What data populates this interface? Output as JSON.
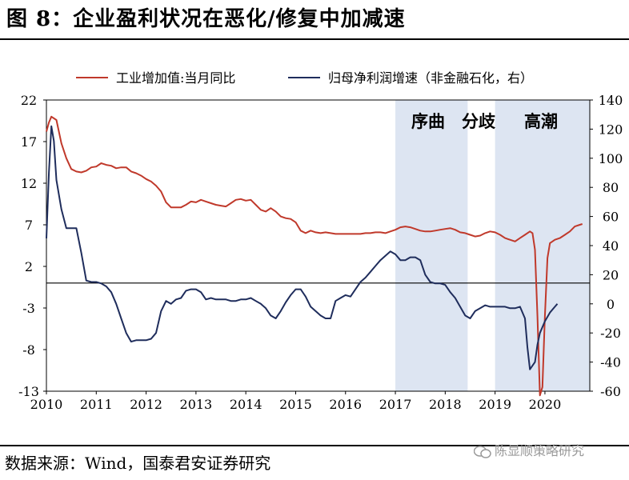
{
  "title": "图 8：企业盈利状况在恶化/修复中加减速",
  "source": "数据来源：Wind，国泰君安证券研究",
  "watermark": "陈显顺策略研究",
  "chart_data": {
    "type": "line",
    "title": "图 8：企业盈利状况在恶化/修复中加减速",
    "xlabel": "",
    "ylabel": "",
    "x_ticks": [
      "2010",
      "2011",
      "2012",
      "2013",
      "2014",
      "2015",
      "2016",
      "2017",
      "2018",
      "2019",
      "2020"
    ],
    "y_left": {
      "ticks": [
        22,
        17,
        12,
        7,
        2,
        -3,
        -8,
        -13
      ],
      "range": [
        -13,
        22
      ]
    },
    "y_right": {
      "ticks": [
        140,
        120,
        100,
        80,
        60,
        40,
        20,
        0,
        -20,
        -40,
        -60
      ],
      "range": [
        -60,
        140
      ]
    },
    "shaded_periods": [
      {
        "start": 2017.0,
        "end": 2018.45
      },
      {
        "start": 2019.0,
        "end": 2020.9
      }
    ],
    "annotations": [
      "序曲",
      "分歧",
      "高潮"
    ],
    "legend_position": "top",
    "colors": {
      "series1": "#c0392b",
      "series2": "#1f2d5c",
      "shade": "#dde5f2"
    },
    "series": [
      {
        "name": "工业增加值:当月同比",
        "axis": "left",
        "points": [
          [
            2010.0,
            18.2
          ],
          [
            2010.05,
            19.3
          ],
          [
            2010.1,
            20.0
          ],
          [
            2010.2,
            19.6
          ],
          [
            2010.3,
            16.8
          ],
          [
            2010.4,
            15.0
          ],
          [
            2010.5,
            13.7
          ],
          [
            2010.6,
            13.4
          ],
          [
            2010.7,
            13.3
          ],
          [
            2010.8,
            13.5
          ],
          [
            2010.9,
            13.9
          ],
          [
            2011.0,
            14.0
          ],
          [
            2011.1,
            14.4
          ],
          [
            2011.2,
            14.2
          ],
          [
            2011.3,
            14.1
          ],
          [
            2011.4,
            13.8
          ],
          [
            2011.5,
            13.9
          ],
          [
            2011.6,
            13.9
          ],
          [
            2011.7,
            13.4
          ],
          [
            2011.8,
            13.2
          ],
          [
            2011.9,
            12.9
          ],
          [
            2012.0,
            12.5
          ],
          [
            2012.1,
            12.2
          ],
          [
            2012.2,
            11.7
          ],
          [
            2012.3,
            11.0
          ],
          [
            2012.4,
            9.7
          ],
          [
            2012.5,
            9.1
          ],
          [
            2012.6,
            9.1
          ],
          [
            2012.7,
            9.1
          ],
          [
            2012.8,
            9.4
          ],
          [
            2012.9,
            9.8
          ],
          [
            2013.0,
            9.7
          ],
          [
            2013.1,
            10.0
          ],
          [
            2013.2,
            9.8
          ],
          [
            2013.3,
            9.6
          ],
          [
            2013.4,
            9.4
          ],
          [
            2013.5,
            9.3
          ],
          [
            2013.6,
            9.2
          ],
          [
            2013.7,
            9.6
          ],
          [
            2013.8,
            10.0
          ],
          [
            2013.9,
            10.1
          ],
          [
            2014.0,
            9.9
          ],
          [
            2014.1,
            10.0
          ],
          [
            2014.2,
            9.4
          ],
          [
            2014.3,
            8.8
          ],
          [
            2014.4,
            8.6
          ],
          [
            2014.5,
            9.0
          ],
          [
            2014.6,
            8.6
          ],
          [
            2014.7,
            8.0
          ],
          [
            2014.8,
            7.8
          ],
          [
            2014.9,
            7.7
          ],
          [
            2015.0,
            7.3
          ],
          [
            2015.1,
            6.3
          ],
          [
            2015.2,
            6.0
          ],
          [
            2015.3,
            6.3
          ],
          [
            2015.4,
            6.1
          ],
          [
            2015.5,
            6.0
          ],
          [
            2015.6,
            6.1
          ],
          [
            2015.7,
            6.0
          ],
          [
            2015.8,
            5.9
          ],
          [
            2015.9,
            5.9
          ],
          [
            2016.0,
            5.9
          ],
          [
            2016.1,
            5.9
          ],
          [
            2016.2,
            5.9
          ],
          [
            2016.3,
            5.9
          ],
          [
            2016.4,
            6.0
          ],
          [
            2016.5,
            6.0
          ],
          [
            2016.6,
            6.1
          ],
          [
            2016.7,
            6.1
          ],
          [
            2016.8,
            6.0
          ],
          [
            2016.9,
            6.2
          ],
          [
            2017.0,
            6.4
          ],
          [
            2017.1,
            6.7
          ],
          [
            2017.2,
            6.8
          ],
          [
            2017.3,
            6.7
          ],
          [
            2017.4,
            6.5
          ],
          [
            2017.5,
            6.3
          ],
          [
            2017.6,
            6.2
          ],
          [
            2017.7,
            6.2
          ],
          [
            2017.8,
            6.3
          ],
          [
            2017.9,
            6.4
          ],
          [
            2018.0,
            6.5
          ],
          [
            2018.1,
            6.6
          ],
          [
            2018.2,
            6.4
          ],
          [
            2018.3,
            6.1
          ],
          [
            2018.4,
            6.0
          ],
          [
            2018.5,
            5.8
          ],
          [
            2018.6,
            5.6
          ],
          [
            2018.7,
            5.7
          ],
          [
            2018.8,
            6.0
          ],
          [
            2018.9,
            6.2
          ],
          [
            2019.0,
            6.1
          ],
          [
            2019.1,
            5.8
          ],
          [
            2019.2,
            5.4
          ],
          [
            2019.3,
            5.2
          ],
          [
            2019.4,
            5.0
          ],
          [
            2019.5,
            5.4
          ],
          [
            2019.6,
            5.8
          ],
          [
            2019.7,
            6.2
          ],
          [
            2019.75,
            6.0
          ],
          [
            2019.8,
            4.0
          ],
          [
            2019.85,
            -4.0
          ],
          [
            2019.9,
            -13.5
          ],
          [
            2019.95,
            -12.5
          ],
          [
            2020.0,
            -4.0
          ],
          [
            2020.05,
            3.0
          ],
          [
            2020.1,
            4.8
          ],
          [
            2020.2,
            5.2
          ],
          [
            2020.3,
            5.4
          ],
          [
            2020.4,
            5.8
          ],
          [
            2020.5,
            6.2
          ],
          [
            2020.6,
            6.8
          ],
          [
            2020.7,
            7.0
          ],
          [
            2020.75,
            7.1
          ]
        ]
      },
      {
        "name": "归母净利润增速（非金融石化，右）",
        "axis": "right",
        "points": [
          [
            2010.0,
            45
          ],
          [
            2010.05,
            90
          ],
          [
            2010.1,
            122
          ],
          [
            2010.15,
            112
          ],
          [
            2010.2,
            85
          ],
          [
            2010.3,
            65
          ],
          [
            2010.4,
            52
          ],
          [
            2010.5,
            52
          ],
          [
            2010.6,
            52
          ],
          [
            2010.7,
            35
          ],
          [
            2010.8,
            16
          ],
          [
            2010.9,
            15
          ],
          [
            2011.0,
            15
          ],
          [
            2011.1,
            14
          ],
          [
            2011.2,
            12
          ],
          [
            2011.3,
            8
          ],
          [
            2011.4,
            0
          ],
          [
            2011.5,
            -10
          ],
          [
            2011.6,
            -20
          ],
          [
            2011.7,
            -26
          ],
          [
            2011.8,
            -25
          ],
          [
            2011.9,
            -25
          ],
          [
            2012.0,
            -25
          ],
          [
            2012.1,
            -24
          ],
          [
            2012.2,
            -20
          ],
          [
            2012.3,
            -5
          ],
          [
            2012.4,
            2
          ],
          [
            2012.5,
            0
          ],
          [
            2012.6,
            3
          ],
          [
            2012.7,
            4
          ],
          [
            2012.8,
            9
          ],
          [
            2012.9,
            10
          ],
          [
            2013.0,
            10
          ],
          [
            2013.1,
            8
          ],
          [
            2013.2,
            3
          ],
          [
            2013.3,
            4
          ],
          [
            2013.4,
            3
          ],
          [
            2013.5,
            3
          ],
          [
            2013.6,
            3
          ],
          [
            2013.7,
            2
          ],
          [
            2013.8,
            2
          ],
          [
            2013.9,
            3
          ],
          [
            2014.0,
            3
          ],
          [
            2014.1,
            4
          ],
          [
            2014.2,
            2
          ],
          [
            2014.3,
            0
          ],
          [
            2014.4,
            -3
          ],
          [
            2014.5,
            -8
          ],
          [
            2014.6,
            -10
          ],
          [
            2014.7,
            -5
          ],
          [
            2014.8,
            1
          ],
          [
            2014.9,
            6
          ],
          [
            2015.0,
            10
          ],
          [
            2015.1,
            10
          ],
          [
            2015.2,
            5
          ],
          [
            2015.3,
            -2
          ],
          [
            2015.4,
            -5
          ],
          [
            2015.5,
            -8
          ],
          [
            2015.6,
            -10
          ],
          [
            2015.7,
            -10
          ],
          [
            2015.8,
            2
          ],
          [
            2015.9,
            4
          ],
          [
            2016.0,
            6
          ],
          [
            2016.1,
            5
          ],
          [
            2016.2,
            10
          ],
          [
            2016.3,
            15
          ],
          [
            2016.4,
            18
          ],
          [
            2016.5,
            22
          ],
          [
            2016.6,
            26
          ],
          [
            2016.7,
            30
          ],
          [
            2016.8,
            33
          ],
          [
            2016.9,
            36
          ],
          [
            2017.0,
            34
          ],
          [
            2017.1,
            30
          ],
          [
            2017.2,
            30
          ],
          [
            2017.3,
            32
          ],
          [
            2017.4,
            32
          ],
          [
            2017.5,
            30
          ],
          [
            2017.6,
            20
          ],
          [
            2017.7,
            15
          ],
          [
            2017.8,
            14
          ],
          [
            2017.9,
            14
          ],
          [
            2018.0,
            13
          ],
          [
            2018.1,
            8
          ],
          [
            2018.2,
            4
          ],
          [
            2018.3,
            -2
          ],
          [
            2018.4,
            -8
          ],
          [
            2018.5,
            -10
          ],
          [
            2018.6,
            -5
          ],
          [
            2018.7,
            -3
          ],
          [
            2018.8,
            -1
          ],
          [
            2018.9,
            -2
          ],
          [
            2019.0,
            -2
          ],
          [
            2019.1,
            -2
          ],
          [
            2019.2,
            -2
          ],
          [
            2019.3,
            -3
          ],
          [
            2019.4,
            -3
          ],
          [
            2019.5,
            -2
          ],
          [
            2019.6,
            -10
          ],
          [
            2019.65,
            -30
          ],
          [
            2019.7,
            -45
          ],
          [
            2019.8,
            -40
          ],
          [
            2019.85,
            -28
          ],
          [
            2019.9,
            -20
          ],
          [
            2020.0,
            -12
          ],
          [
            2020.1,
            -6
          ],
          [
            2020.2,
            -2
          ],
          [
            2020.25,
            0
          ]
        ]
      }
    ]
  }
}
